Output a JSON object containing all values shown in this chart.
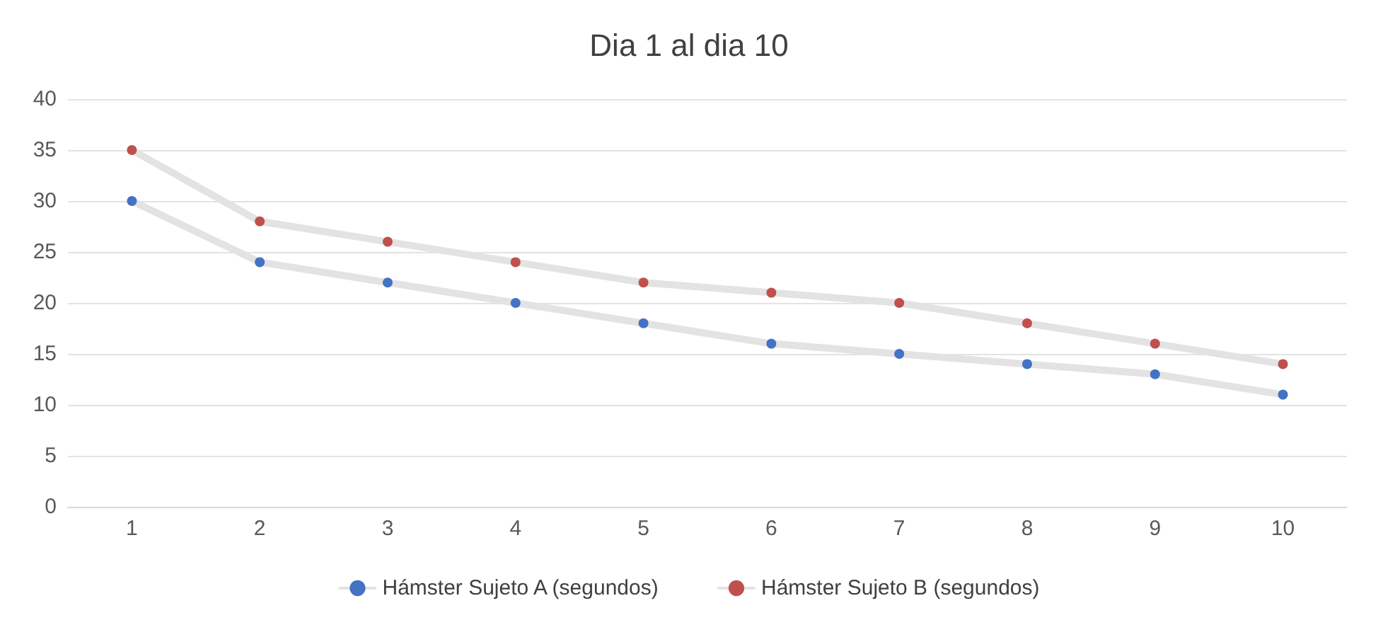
{
  "chart_data": {
    "type": "line",
    "title": "Dia 1 al dia 10",
    "categories": [
      "1",
      "2",
      "3",
      "4",
      "5",
      "6",
      "7",
      "8",
      "9",
      "10"
    ],
    "series": [
      {
        "name": "Hámster Sujeto A (segundos)",
        "color": "#4472c4",
        "values": [
          30,
          24,
          22,
          20,
          18,
          16,
          15,
          14,
          13,
          11
        ]
      },
      {
        "name": "Hámster Sujeto B (segundos)",
        "color": "#c0504d",
        "values": [
          35,
          28,
          26,
          24,
          22,
          21,
          20,
          18,
          16,
          14
        ]
      }
    ],
    "ylim": [
      0,
      40
    ],
    "yticks": [
      0,
      5,
      10,
      15,
      20,
      25,
      30,
      35,
      40
    ],
    "grid": "y",
    "legend": "bottom",
    "marker": "circle"
  }
}
